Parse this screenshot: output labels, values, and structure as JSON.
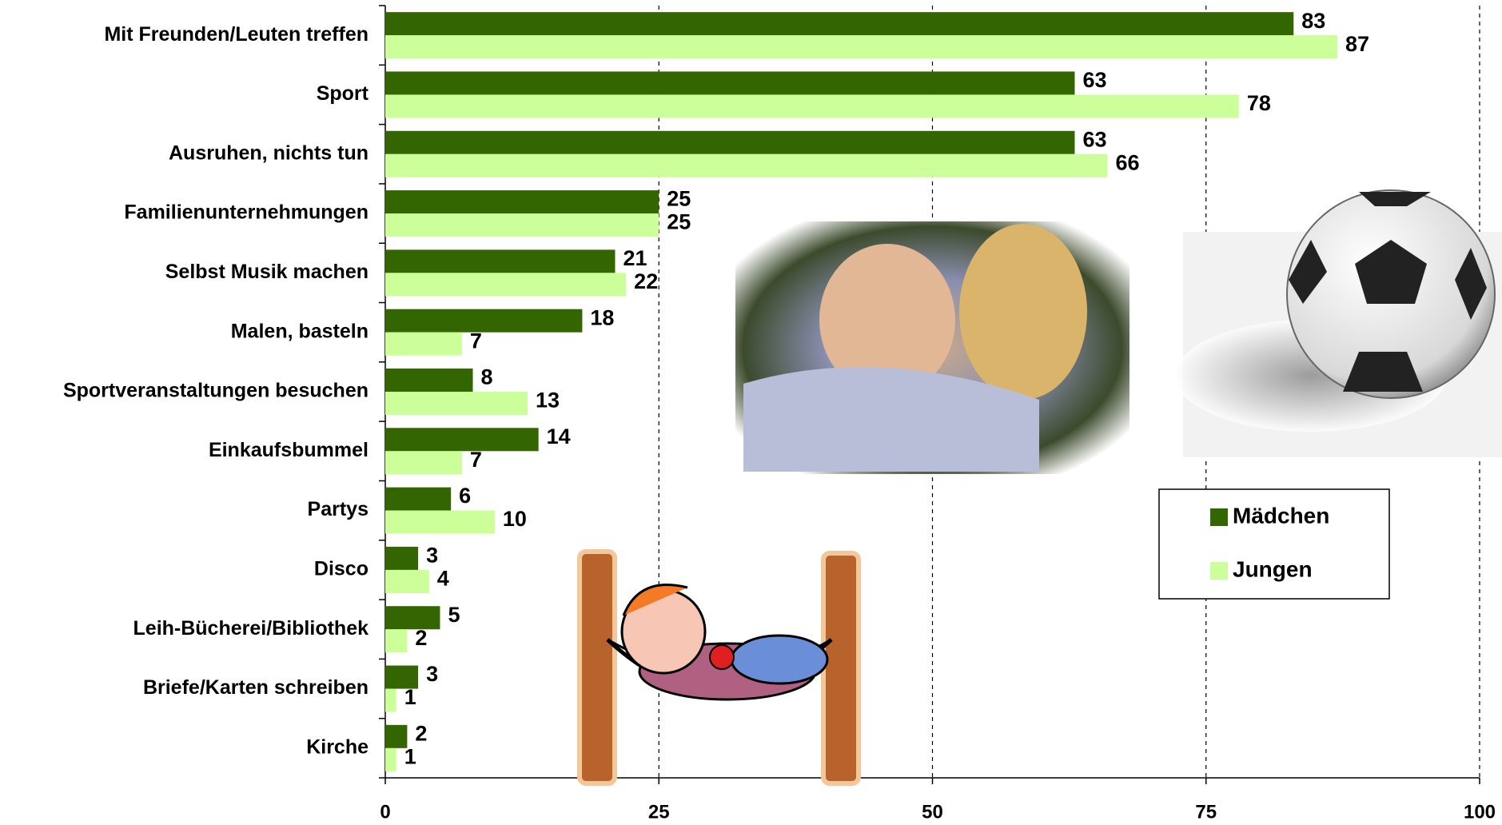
{
  "chart_data": {
    "type": "bar",
    "orientation": "horizontal",
    "categories": [
      "Mit Freunden/Leuten treffen",
      "Sport",
      "Ausruhen, nichts tun",
      "Familienunternehmungen",
      "Selbst Musik machen",
      "Malen, basteln",
      "Sportveranstaltungen besuchen",
      "Einkaufsbummel",
      "Partys",
      "Disco",
      "Leih-Bücherei/Bibliothek",
      "Briefe/Karten schreiben",
      "Kirche"
    ],
    "series": [
      {
        "name": "Mädchen",
        "color": "#336600",
        "values": [
          83,
          63,
          63,
          25,
          21,
          18,
          8,
          14,
          6,
          3,
          5,
          3,
          2
        ]
      },
      {
        "name": "Jungen",
        "color": "#ccff99",
        "values": [
          87,
          78,
          66,
          25,
          22,
          7,
          13,
          7,
          10,
          4,
          2,
          1,
          1
        ]
      }
    ],
    "xlim": [
      0,
      100
    ],
    "xticks": [
      0,
      25,
      50,
      75,
      100
    ],
    "grid": true,
    "legend": "right"
  }
}
